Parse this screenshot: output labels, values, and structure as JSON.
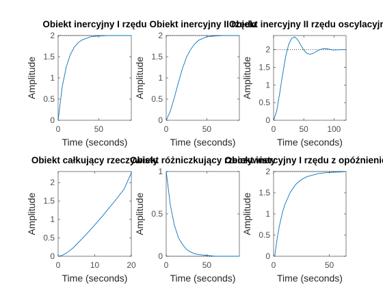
{
  "chart_data": [
    {
      "type": "line",
      "title": "Obiekt inercyjny I rzędu",
      "xlabel": "Time (seconds)",
      "ylabel": "Amplitude",
      "xlim": [
        0,
        90
      ],
      "ylim": [
        0,
        2
      ],
      "xticks": [
        0,
        50
      ],
      "yticks": [
        0,
        0.5,
        1,
        1.5,
        2
      ],
      "xtick_labels": [
        "0",
        "50"
      ],
      "ytick_labels": [
        "0",
        "0.5",
        "1",
        "1.5",
        "2"
      ],
      "steady_state": 2,
      "series": [
        {
          "color": "#0072BD",
          "x": [
            0,
            5,
            10,
            15,
            20,
            25,
            30,
            40,
            50,
            60,
            70,
            80,
            90
          ],
          "y": [
            0,
            0.79,
            1.26,
            1.55,
            1.73,
            1.84,
            1.9,
            1.97,
            1.99,
            2.0,
            2.0,
            2.0,
            2.0
          ]
        }
      ]
    },
    {
      "type": "line",
      "title": "Obiekt inercyjny II rzędu",
      "xlabel": "Time (seconds)",
      "ylabel": "Amplitude",
      "xlim": [
        0,
        90
      ],
      "ylim": [
        0,
        2
      ],
      "xticks": [
        0,
        50
      ],
      "yticks": [
        0,
        0.5,
        1,
        1.5,
        2
      ],
      "xtick_labels": [
        "0",
        "50"
      ],
      "ytick_labels": [
        "0",
        "0.5",
        "1",
        "1.5",
        "2"
      ],
      "steady_state": 2,
      "series": [
        {
          "color": "#0072BD",
          "x": [
            0,
            5,
            10,
            15,
            20,
            25,
            30,
            35,
            40,
            50,
            60,
            70,
            80,
            90
          ],
          "y": [
            0,
            0.21,
            0.53,
            0.89,
            1.22,
            1.49,
            1.67,
            1.8,
            1.89,
            1.97,
            1.99,
            2.0,
            2.0,
            2.0
          ]
        }
      ]
    },
    {
      "type": "line",
      "title": "Obiekt inercyjny II rzędu oscylacyjny",
      "xlabel": "Time (seconds)",
      "ylabel": "Amplitude",
      "xlim": [
        0,
        120
      ],
      "ylim": [
        0,
        2.4
      ],
      "xticks": [
        0,
        50,
        100
      ],
      "yticks": [
        0,
        0.5,
        1,
        1.5,
        2
      ],
      "xtick_labels": [
        "0",
        "50",
        "100"
      ],
      "ytick_labels": [
        "0",
        "0.5",
        "1",
        "1.5",
        "2"
      ],
      "steady_state": 2,
      "series": [
        {
          "color": "#0072BD",
          "x": [
            0,
            5,
            10,
            15,
            20,
            25,
            30,
            35,
            40,
            45,
            50,
            55,
            60,
            65,
            70,
            75,
            80,
            85,
            90,
            95,
            100,
            110,
            120
          ],
          "y": [
            0,
            0.25,
            0.75,
            1.3,
            1.8,
            2.15,
            2.32,
            2.36,
            2.28,
            2.13,
            1.99,
            1.9,
            1.87,
            1.89,
            1.94,
            1.99,
            2.02,
            2.03,
            2.02,
            2.0,
            1.99,
            2.0,
            2.0
          ]
        }
      ]
    },
    {
      "type": "line",
      "title": "Obiekt całkujący rzeczywisty",
      "xlabel": "Time (seconds)",
      "ylabel": "Amplitude",
      "xlim": [
        0,
        20
      ],
      "ylim": [
        0,
        2.3
      ],
      "xticks": [
        0,
        10,
        20
      ],
      "yticks": [
        0,
        0.5,
        1,
        1.5,
        2
      ],
      "xtick_labels": [
        "0",
        "10",
        "20"
      ],
      "ytick_labels": [
        "0",
        "0.5",
        "1",
        "1.5",
        "2"
      ],
      "steady_state": null,
      "series": [
        {
          "color": "#0072BD",
          "x": [
            0,
            1,
            2,
            3,
            4,
            5,
            6,
            8,
            10,
            12,
            14,
            16,
            18,
            20
          ],
          "y": [
            0,
            0.02,
            0.07,
            0.14,
            0.22,
            0.32,
            0.42,
            0.63,
            0.85,
            1.08,
            1.32,
            1.56,
            1.82,
            2.26
          ]
        }
      ]
    },
    {
      "type": "line",
      "title": "Obiekt różniczkujący rzeczywisty",
      "xlabel": "Time (seconds)",
      "ylabel": "Amplitude",
      "xlim": [
        0,
        90
      ],
      "ylim": [
        0,
        1
      ],
      "xticks": [
        0,
        50
      ],
      "yticks": [
        0,
        0.5,
        1
      ],
      "xtick_labels": [
        "0",
        "50"
      ],
      "ytick_labels": [
        "0",
        "0.5",
        "1"
      ],
      "steady_state": 0,
      "series": [
        {
          "color": "#0072BD",
          "x": [
            0,
            5,
            10,
            15,
            20,
            25,
            30,
            35,
            40,
            50,
            60,
            70,
            80,
            90
          ],
          "y": [
            1.0,
            0.61,
            0.37,
            0.22,
            0.14,
            0.08,
            0.05,
            0.03,
            0.02,
            0.01,
            0.0,
            0.0,
            0.0,
            0.0
          ]
        }
      ]
    },
    {
      "type": "line",
      "title": "Obiekt inercyjny I rzędu z opóźnieniem",
      "xlabel": "Time (seconds)",
      "ylabel": "Amplitude",
      "xlim": [
        0,
        65
      ],
      "ylim": [
        0,
        2
      ],
      "xticks": [
        0,
        50
      ],
      "yticks": [
        0,
        0.5,
        1,
        1.5,
        2
      ],
      "xtick_labels": [
        "0",
        "50"
      ],
      "ytick_labels": [
        "0",
        "0.5",
        "1",
        "1.5",
        "2"
      ],
      "steady_state": 2,
      "series": [
        {
          "color": "#0072BD",
          "x": [
            0,
            1,
            3,
            5,
            8,
            10,
            15,
            20,
            25,
            30,
            40,
            50,
            60,
            65
          ],
          "y": [
            0,
            0.0,
            0.38,
            0.69,
            1.04,
            1.21,
            1.51,
            1.7,
            1.81,
            1.88,
            1.95,
            1.98,
            1.99,
            2.0
          ]
        }
      ]
    }
  ]
}
